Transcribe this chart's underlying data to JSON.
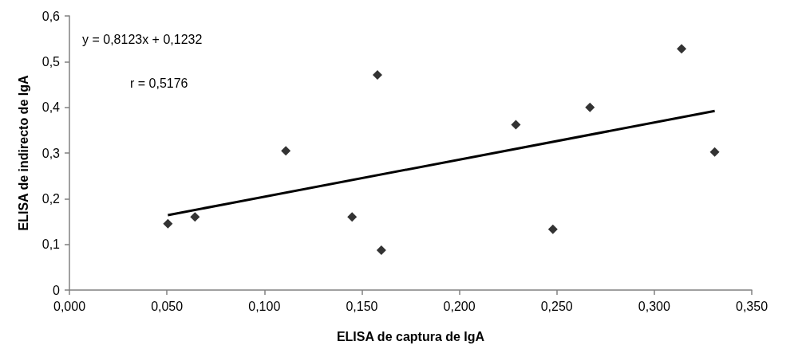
{
  "chart_data": {
    "type": "scatter",
    "xlabel": "ELISA de captura de IgA",
    "ylabel": "ELISA de indirecto de IgA",
    "annotations": [
      "y = 0,8123x + 0,1232",
      "r = 0,5176"
    ],
    "marker": "diamond",
    "grid": false,
    "xlim": [
      0,
      0.35
    ],
    "ylim": [
      0,
      0.6
    ],
    "xticks": [
      {
        "value": 0,
        "label": "0,000"
      },
      {
        "value": 0.05,
        "label": "0,050"
      },
      {
        "value": 0.1,
        "label": "0,100"
      },
      {
        "value": 0.15,
        "label": "0,150"
      },
      {
        "value": 0.2,
        "label": "0,200"
      },
      {
        "value": 0.25,
        "label": "0,250"
      },
      {
        "value": 0.3,
        "label": "0,300"
      },
      {
        "value": 0.35,
        "label": "0,350"
      }
    ],
    "yticks": [
      0,
      {
        "value": 0.1,
        "label": "0,1"
      },
      {
        "value": 0.2,
        "label": "0,2"
      },
      {
        "value": 0.3,
        "label": "0,3"
      },
      {
        "value": 0.4,
        "label": "0,4"
      },
      {
        "value": 0.5,
        "label": "0,5"
      },
      {
        "value": 0.6,
        "label": "0,6"
      }
    ],
    "series": [
      {
        "type": "scatter",
        "color": "#000000",
        "x": [
          0.0505,
          0.0644,
          0.111,
          0.145,
          0.158,
          0.16,
          0.229,
          0.248,
          0.267,
          0.314,
          0.331
        ],
        "values": [
          0.145,
          0.16,
          0.305,
          0.16,
          0.471,
          0.087,
          0.362,
          0.133,
          0.4,
          0.528,
          0.302
        ]
      },
      {
        "type": "line",
        "color": "#000000",
        "marker": "none",
        "line_style": "solid",
        "x": [
          0.0505,
          0.331
        ],
        "values": [
          0.164,
          0.392
        ]
      }
    ]
  }
}
